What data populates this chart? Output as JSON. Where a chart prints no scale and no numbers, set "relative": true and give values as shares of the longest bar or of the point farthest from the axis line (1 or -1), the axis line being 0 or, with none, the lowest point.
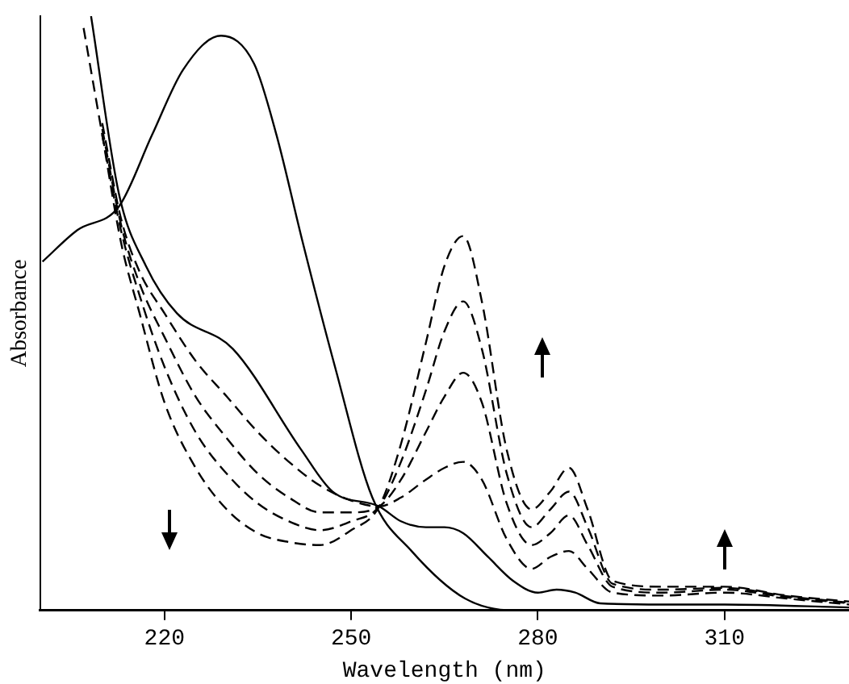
{
  "chart_data": {
    "type": "line",
    "xlabel": "Wavelength (nm)",
    "ylabel": "Absorbance",
    "relative": true,
    "xlim": [
      200,
      330
    ],
    "xticks": [
      220,
      250,
      280,
      310
    ],
    "tick_labels": "x",
    "grid": false,
    "legend": false,
    "marker": "none",
    "series": [
      {
        "color": "#000000",
        "line_style": "solid",
        "x": [
          200.4,
          206,
          212.7,
          218,
          223,
          229.1,
          234.4,
          238,
          242.2,
          247.4,
          253.4,
          259.7,
          268.3,
          276.1,
          290,
          330
        ],
        "values": [
          0.587,
          0.64,
          0.68,
          0.8,
          0.91,
          0.967,
          0.92,
          0.8,
          0.62,
          0.41,
          0.19,
          0.1,
          0.02,
          0,
          0,
          0
        ]
      },
      {
        "color": "#000000",
        "line_style": "solid",
        "x": [
          208.2,
          212.7,
          217,
          222,
          231,
          242,
          247,
          254.5,
          258,
          262,
          265,
          268,
          272,
          276,
          280,
          283,
          286,
          290,
          300,
          310,
          330
        ],
        "values": [
          1.0,
          0.7,
          0.58,
          0.5,
          0.44,
          0.27,
          0.2,
          0.175,
          0.15,
          0.14,
          0.14,
          0.13,
          0.09,
          0.05,
          0.03,
          0.035,
          0.03,
          0.012,
          0.01,
          0.01,
          0.005
        ]
      },
      {
        "color": "#000000",
        "line_style": "dashed",
        "x": [
          210,
          213,
          216,
          220,
          225,
          230,
          235,
          240,
          245,
          250,
          254.5,
          258,
          262,
          265,
          268,
          271,
          275,
          279,
          282,
          285,
          288,
          292,
          300,
          310,
          320,
          330
        ],
        "values": [
          0.82,
          0.66,
          0.57,
          0.5,
          0.42,
          0.36,
          0.3,
          0.25,
          0.21,
          0.185,
          0.175,
          0.19,
          0.22,
          0.24,
          0.25,
          0.22,
          0.12,
          0.07,
          0.09,
          0.1,
          0.07,
          0.03,
          0.025,
          0.03,
          0.02,
          0.01
        ]
      },
      {
        "color": "#000000",
        "line_style": "dashed",
        "x": [
          210,
          213,
          216,
          220,
          225,
          230,
          235,
          240,
          245,
          250,
          254.5,
          258,
          262,
          265,
          268,
          271,
          275,
          279,
          282,
          285,
          288,
          292,
          300,
          310,
          320,
          330
        ],
        "values": [
          0.81,
          0.65,
          0.55,
          0.46,
          0.36,
          0.29,
          0.23,
          0.19,
          0.165,
          0.165,
          0.175,
          0.22,
          0.3,
          0.36,
          0.4,
          0.35,
          0.18,
          0.11,
          0.13,
          0.16,
          0.11,
          0.04,
          0.03,
          0.035,
          0.022,
          0.012
        ]
      },
      {
        "color": "#000000",
        "line_style": "dashed",
        "x": [
          210,
          213,
          216,
          220,
          225,
          230,
          235,
          240,
          245,
          250,
          254.5,
          258,
          262,
          265,
          268,
          271,
          275,
          279,
          282,
          285,
          288,
          292,
          300,
          310,
          320,
          330
        ],
        "values": [
          0.8,
          0.64,
          0.53,
          0.41,
          0.3,
          0.23,
          0.18,
          0.15,
          0.135,
          0.15,
          0.175,
          0.25,
          0.37,
          0.47,
          0.52,
          0.44,
          0.23,
          0.14,
          0.17,
          0.2,
          0.14,
          0.045,
          0.035,
          0.038,
          0.024,
          0.013
        ]
      },
      {
        "color": "#000000",
        "line_style": "dashed",
        "x": [
          207,
          210,
          213,
          216,
          220,
          225,
          230,
          235,
          240,
          245,
          250,
          254.5,
          258,
          262,
          265,
          268,
          271,
          275,
          279,
          282,
          285,
          288,
          292,
          300,
          310,
          320,
          330
        ],
        "values": [
          0.98,
          0.8,
          0.62,
          0.5,
          0.35,
          0.24,
          0.17,
          0.13,
          0.115,
          0.11,
          0.135,
          0.175,
          0.28,
          0.45,
          0.58,
          0.63,
          0.52,
          0.27,
          0.17,
          0.2,
          0.24,
          0.17,
          0.05,
          0.04,
          0.04,
          0.025,
          0.015
        ]
      }
    ]
  }
}
